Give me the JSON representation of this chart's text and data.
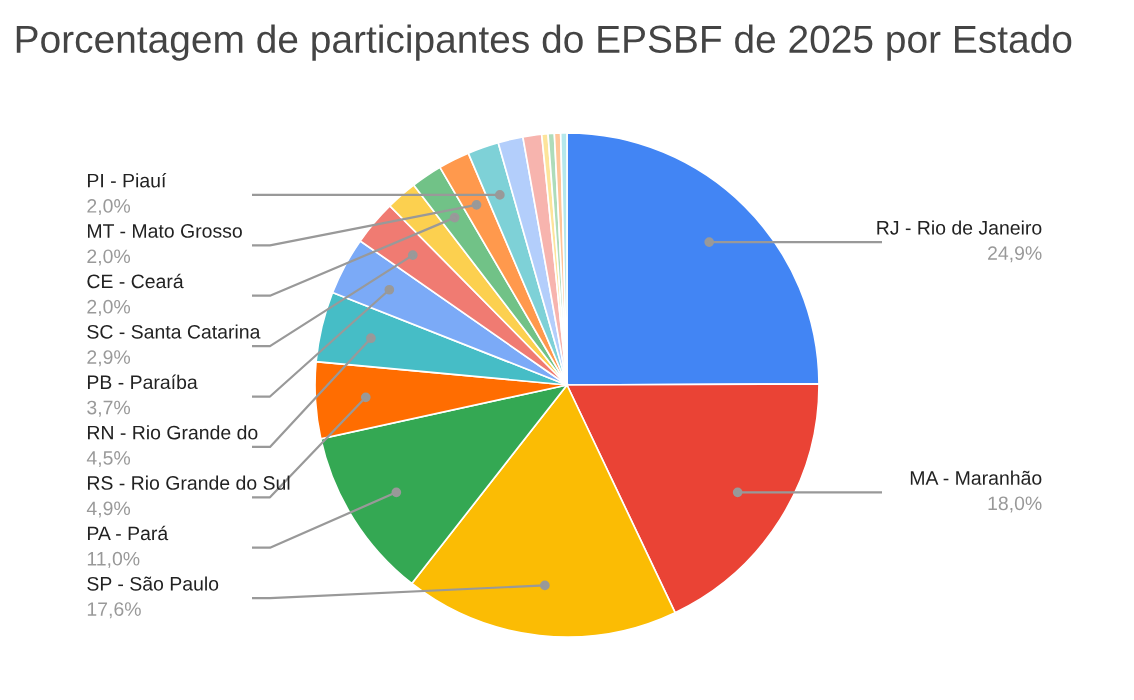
{
  "chart_data": {
    "type": "pie",
    "title": "Porcentagem de participantes do EPSBF de 2025 por Estado",
    "categories": [
      "RJ - Rio de Janeiro",
      "MA - Maranhão",
      "SP - São Paulo",
      "PA - Pará",
      "RS - Rio Grande do Sul",
      "RN - Rio Grande do",
      "PB - Paraíba",
      "SC - Santa Catarina",
      null,
      "CE - Ceará",
      "MT - Mato Grosso",
      "PI - Piauí",
      null,
      null,
      null,
      null,
      null,
      null
    ],
    "values": [
      24.9,
      18.0,
      17.6,
      11.0,
      4.9,
      4.5,
      3.7,
      2.9,
      2.0,
      2.0,
      2.0,
      2.0,
      1.6,
      1.2,
      0.4,
      0.4,
      0.4,
      0.4
    ],
    "colors": [
      "#4285f4",
      "#ea4335",
      "#fbbc04",
      "#34a853",
      "#ff6d01",
      "#46bdc6",
      "#7baaf7",
      "#f07b72",
      "#fcd04f",
      "#71c287",
      "#ff994d",
      "#7ed1d7",
      "#b3cefb",
      "#f7b4ae",
      "#fde49b",
      "#aedcba",
      "#ffc599",
      "#b5e8eb"
    ],
    "value_labels": [
      "24,9%",
      "18,0%",
      "17,6%",
      "11,0%",
      "4,9%",
      "4,5%",
      "3,7%",
      "2,9%",
      null,
      "2,0%",
      "2,0%",
      "2,0%",
      null,
      null,
      null,
      null,
      null,
      null
    ],
    "legend": false
  }
}
